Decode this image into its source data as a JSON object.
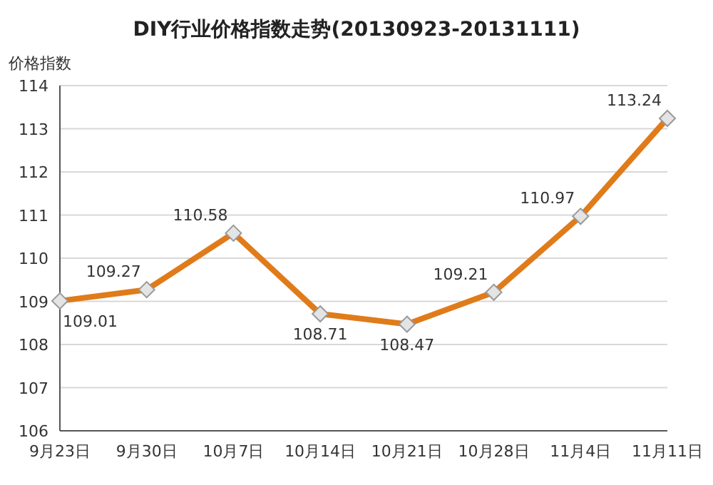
{
  "chart_data": {
    "type": "line",
    "title": "DIY行业价格指数走势(20130923-20131111)",
    "ylabel": "价格指数",
    "categories": [
      "9月23日",
      "9月30日",
      "10月7日",
      "10月14日",
      "10月21日",
      "10月28日",
      "11月4日",
      "11月11日"
    ],
    "values": [
      109.01,
      109.27,
      110.58,
      108.71,
      108.47,
      109.21,
      110.97,
      113.24
    ],
    "color": "#e07b1a",
    "ylim": [
      106,
      114
    ],
    "yticks": [
      106,
      107,
      108,
      109,
      110,
      111,
      112,
      113,
      114
    ],
    "grid": "y",
    "marker": "diamond",
    "data_labels": true
  }
}
